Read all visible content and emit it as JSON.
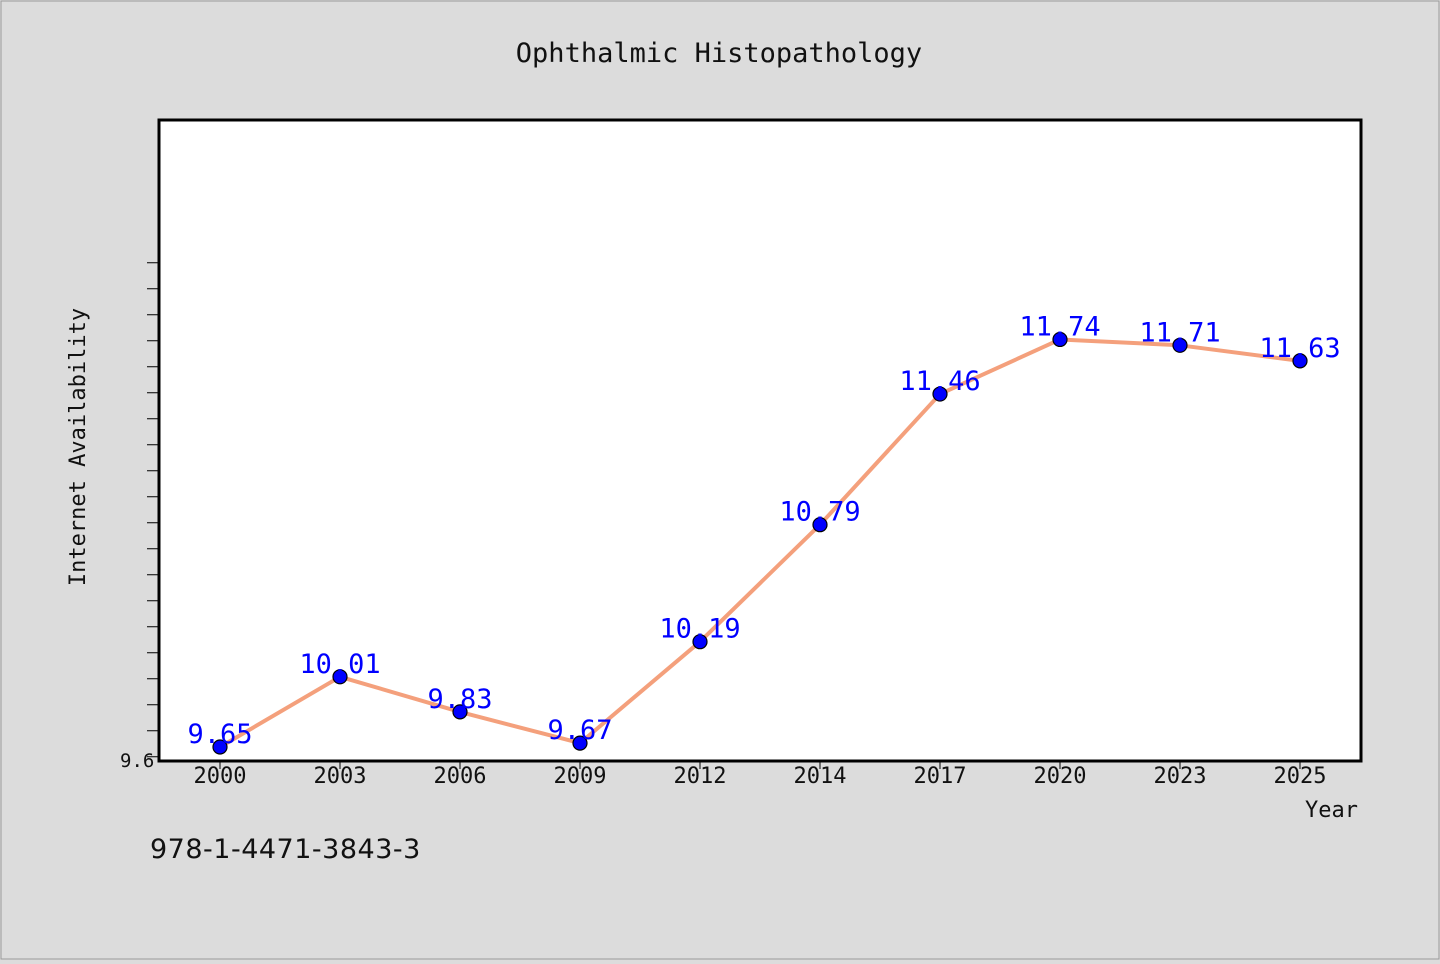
{
  "chart_data": {
    "type": "line",
    "title": "Ophthalmic Histopathology",
    "xlabel": "Year",
    "ylabel": "Internet Availability",
    "categories": [
      "2000",
      "2003",
      "2006",
      "2009",
      "2012",
      "2014",
      "2017",
      "2020",
      "2023",
      "2025"
    ],
    "series": [
      {
        "name": "",
        "values": [
          9.65,
          10.01,
          9.83,
          9.67,
          10.19,
          10.79,
          11.46,
          11.74,
          11.71,
          11.63
        ],
        "data_labels": [
          "9.65",
          "10.01",
          "9.83",
          "9.67",
          "10.19",
          "10.79",
          "11.46",
          "11.74",
          "11.71",
          "11.63"
        ]
      }
    ],
    "ylim": [
      9.6,
      12.0
    ],
    "y_tick_label": "9.6",
    "grid": false,
    "legend": "none",
    "colors": {
      "line": "#f4a07c",
      "marker": "#0000ff",
      "data_label": "#0000ff",
      "background": "#dcdcdc",
      "plot_background": "#ffffff"
    }
  },
  "footer": {
    "isbn": "978-1-4471-3843-3"
  }
}
